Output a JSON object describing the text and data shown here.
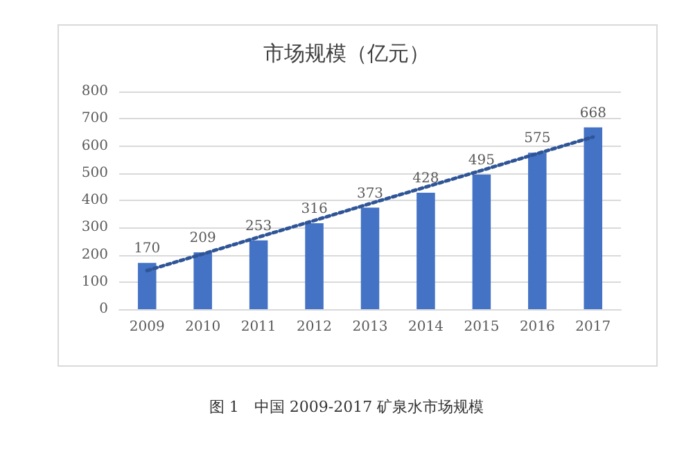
{
  "chart_data": {
    "type": "bar",
    "title": "市场规模（亿元）",
    "categories": [
      "2009",
      "2010",
      "2011",
      "2012",
      "2013",
      "2014",
      "2015",
      "2016",
      "2017"
    ],
    "series": [
      {
        "color": "#4472c4",
        "values": [
          170,
          209,
          253,
          316,
          373,
          428,
          495,
          575,
          668
        ],
        "value_labels": [
          "170",
          "209",
          "253",
          "316",
          "373",
          "428",
          "495",
          "575",
          "668"
        ]
      },
      {
        "type": "line",
        "color": "#2f5597",
        "line_style": "dotted",
        "marker": "none",
        "values": [
          142,
          203,
          265,
          326,
          388,
          449,
          510,
          572,
          633
        ]
      }
    ],
    "ylim": [
      0,
      800
    ],
    "yticks": [
      0,
      100,
      200,
      300,
      400,
      500,
      600,
      700,
      800
    ],
    "grid": "y",
    "annotations": [
      "图 1　中国 2009-2017 矿泉水市场规模"
    ]
  }
}
